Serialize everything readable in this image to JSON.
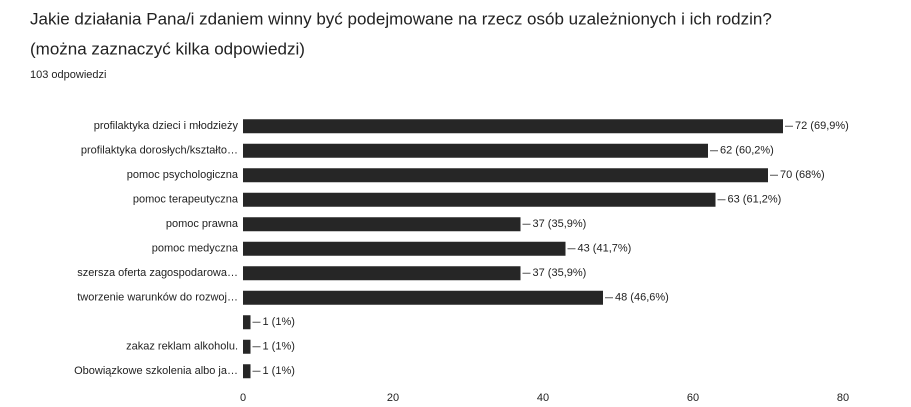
{
  "chart_data": {
    "type": "hbar",
    "title": "Jakie działania Pana/i zdaniem winny być podejmowane na rzecz osób uzależnionych i ich rodzin?",
    "subtitle": "(można zaznaczyć kilka odpowiedzi)",
    "response_count": "103 odpowiedzi",
    "categories": [
      "profilaktyka dzieci i młodzieży",
      "profilaktyka dorosłych/kształto…",
      "pomoc psychologiczna",
      "pomoc terapeutyczna",
      "pomoc prawna",
      "pomoc medyczna",
      "szersza oferta zagospodarowa…",
      "tworzenie warunków do rozwoj…",
      null,
      "zakaz reklam alkoholu.",
      "Obowiązkowe szkolenia albo ja…"
    ],
    "values": [
      72,
      62,
      70,
      63,
      37,
      43,
      37,
      48,
      1,
      1,
      1
    ],
    "value_labels": [
      "72 (69,9%)",
      "62 (60,2%)",
      "70 (68%)",
      "63 (61,2%)",
      "37 (35,9%)",
      "43 (41,7%)",
      "37 (35,9%)",
      "48 (46,6%)",
      "1 (1%)",
      "1 (1%)",
      "1 (1%)"
    ],
    "color": "#262626",
    "xlim": [
      0,
      80
    ],
    "xticks": [
      0,
      20,
      40,
      60,
      80
    ]
  }
}
